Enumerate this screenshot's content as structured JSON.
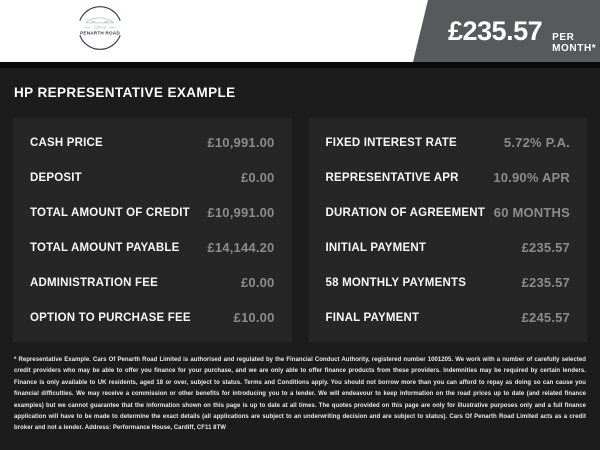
{
  "header": {
    "logo": {
      "line1": "Cars of",
      "line2": "PENARTH ROAD"
    },
    "banner": {
      "price": "£235.57",
      "period": "PER MONTH*"
    }
  },
  "title": "HP REPRESENTATIVE EXAMPLE",
  "finance_table": {
    "left": [
      {
        "label": "CASH PRICE",
        "value": "£10,991.00"
      },
      {
        "label": "DEPOSIT",
        "value": "£0.00"
      },
      {
        "label": "TOTAL AMOUNT OF CREDIT",
        "value": "£10,991.00"
      },
      {
        "label": "TOTAL AMOUNT PAYABLE",
        "value": "£14,144.20"
      },
      {
        "label": "ADMINISTRATION FEE",
        "value": "£0.00"
      },
      {
        "label": "OPTION TO PURCHASE FEE",
        "value": "£10.00"
      }
    ],
    "right": [
      {
        "label": "FIXED INTEREST RATE",
        "value": "5.72% P.A."
      },
      {
        "label": "REPRESENTATIVE APR",
        "value": "10.90% APR"
      },
      {
        "label": "DURATION OF AGREEMENT",
        "value": "60 MONTHS"
      },
      {
        "label": "INITIAL PAYMENT",
        "value": "£235.57"
      },
      {
        "label": "58 MONTHLY PAYMENTS",
        "value": "£235.57"
      },
      {
        "label": "FINAL PAYMENT",
        "value": "£245.57"
      }
    ]
  },
  "disclaimer": "* Representative Example. Cars Of Penarth Road Limited is authorised and regulated by the Financial Conduct Authority, registered number 1001205. We work with a number of carefully selected credit providers who may be able to offer you finance for your purchase, and we are only able to offer finance products from these providers. Indemnities may be required by certain lenders. Finance is only available to UK residents, aged 18 or over, subject to status. Terms and Conditions apply. You should not borrow more than you can afford to repay as doing so can cause you financial difficulties. We may receive a commission or other benefits for introducing you to a lender. We will endeavour to keep information on the road prices up to date (and related finance examples) but we cannot guarantee that the information shown on this page is up to date at all times. The quotes provided on this page are only for illustrative purposes only and a full finance application will have to be made to determine the exact details (all applications are subject to an underwriting decision and are subject to status). Cars Of Penarth Road Limited acts as a credit broker and not a lender. Address: Performance House, Cardiff, CF11 8TW",
  "colors": {
    "banner_gray": "#58595b",
    "page_background": "#1c1c1c",
    "panel_background": "#262626",
    "label_text": "#f8f8f8",
    "value_text": "#8c8c8c",
    "logo_navy": "#2e3b50"
  }
}
